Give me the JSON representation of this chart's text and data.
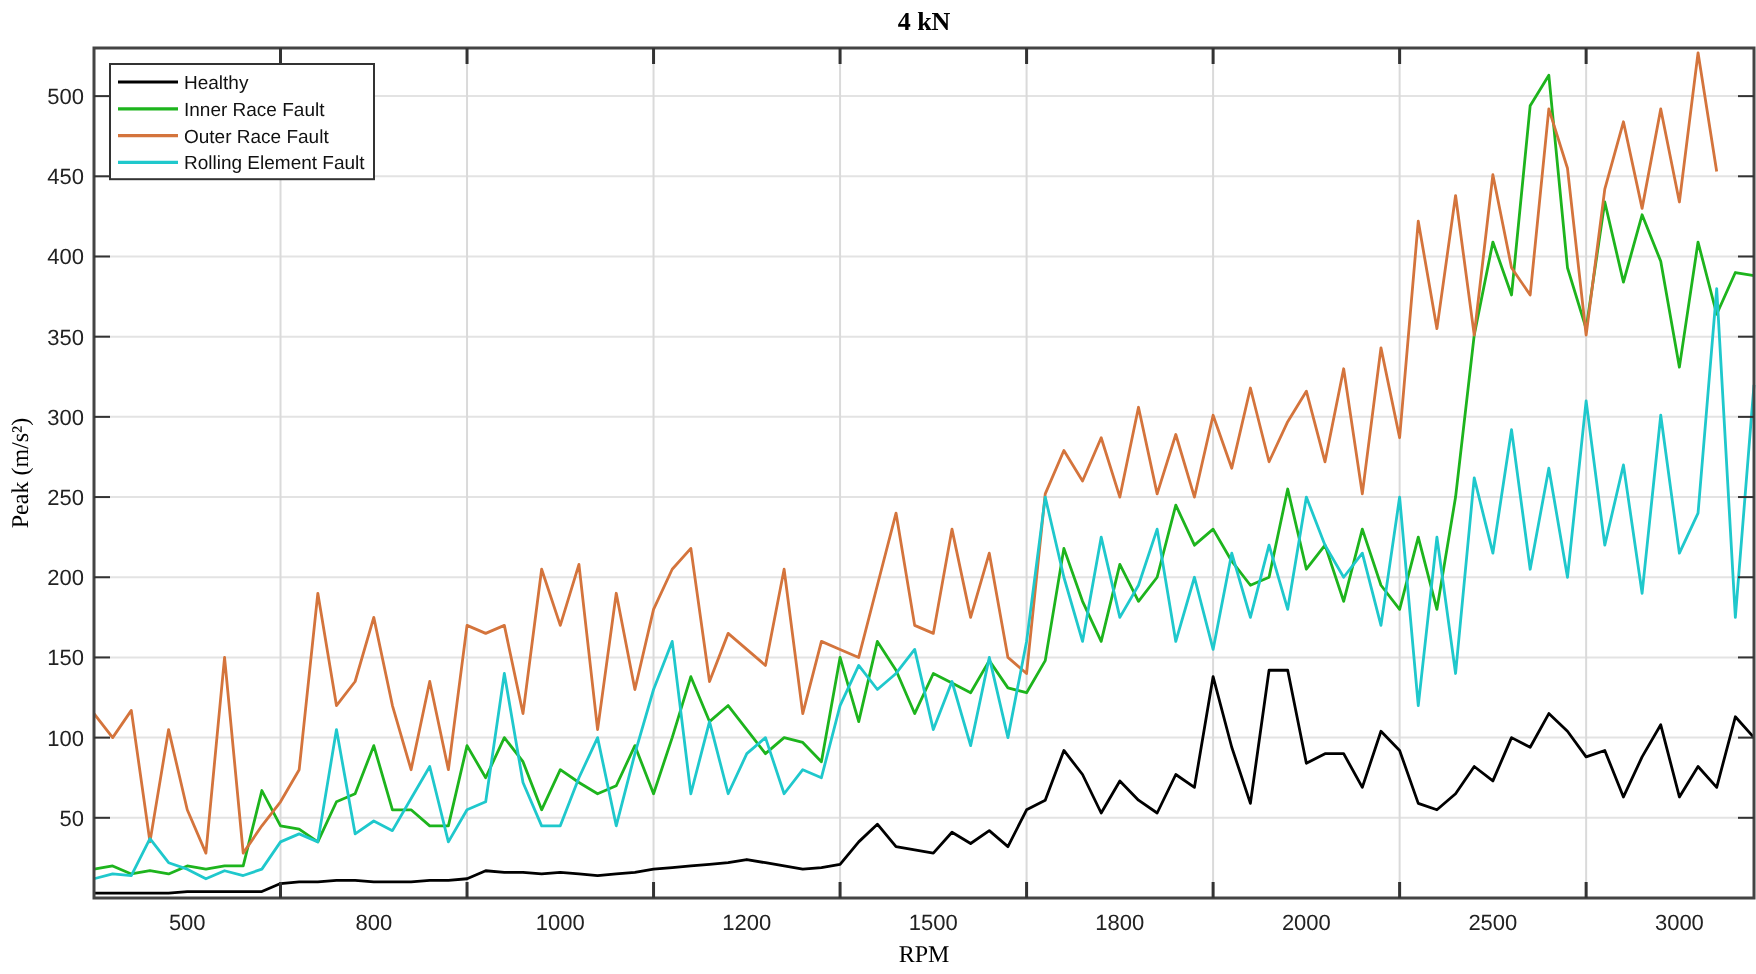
{
  "chart_data": {
    "type": "line",
    "title": "4 kN",
    "xlabel": "RPM",
    "ylabel": "Peak (m/s²)",
    "ylim": [
      0,
      530
    ],
    "categories": [
      null,
      null,
      null,
      null,
      null,
      "500",
      null,
      null,
      null,
      null,
      null,
      null,
      null,
      null,
      null,
      "800",
      null,
      null,
      null,
      null,
      null,
      null,
      null,
      null,
      null,
      "1000",
      null,
      null,
      null,
      null,
      null,
      null,
      null,
      null,
      null,
      "1200",
      null,
      null,
      null,
      null,
      null,
      null,
      null,
      null,
      null,
      "1500",
      null,
      null,
      null,
      null,
      null,
      null,
      null,
      null,
      null,
      "1800",
      null,
      null,
      null,
      null,
      null,
      null,
      null,
      null,
      null,
      "2000",
      null,
      null,
      null,
      null,
      null,
      null,
      null,
      null,
      null,
      "2500",
      null,
      null,
      null,
      null,
      null,
      null,
      null,
      null,
      null,
      "3000",
      null,
      null,
      null,
      null
    ],
    "yticks": [
      50,
      100,
      150,
      200,
      250,
      300,
      350,
      400,
      450,
      500
    ],
    "grid": true,
    "legend": "top left",
    "line_style": "solid",
    "series": [
      {
        "name": "Healthy",
        "color": "#000000",
        "values": [
          3,
          3,
          3,
          3,
          3,
          4,
          4,
          4,
          4,
          4,
          9,
          10,
          10,
          11,
          11,
          10,
          10,
          10,
          11,
          11,
          12,
          17,
          16,
          16,
          15,
          16,
          15,
          14,
          15,
          16,
          18,
          19,
          20,
          21,
          22,
          24,
          22,
          20,
          18,
          19,
          21,
          35,
          46,
          32,
          30,
          28,
          41,
          34,
          42,
          32,
          55,
          61,
          92,
          77,
          53,
          73,
          61,
          53,
          77,
          69,
          138,
          94,
          59,
          142,
          142,
          84,
          90,
          90,
          69,
          104,
          92,
          59,
          55,
          65,
          82,
          73,
          100,
          94,
          115,
          104,
          88,
          92,
          63,
          88,
          108,
          63,
          82,
          69,
          113,
          100
        ]
      },
      {
        "name": "Inner Race Fault",
        "color": "#1db41d",
        "values": [
          18,
          20,
          15,
          17,
          15,
          20,
          18,
          20,
          20,
          67,
          45,
          43,
          35,
          60,
          65,
          95,
          55,
          55,
          45,
          45,
          95,
          75,
          100,
          85,
          55,
          80,
          72,
          65,
          70,
          95,
          65,
          100,
          138,
          110,
          120,
          105,
          90,
          100,
          97,
          85,
          150,
          110,
          160,
          142,
          115,
          140,
          134,
          128,
          148,
          131,
          128,
          148,
          218,
          185,
          160,
          208,
          185,
          200,
          245,
          220,
          230,
          210,
          195,
          200,
          255,
          205,
          220,
          185,
          230,
          195,
          180,
          225,
          180,
          250,
          351,
          409,
          376,
          494,
          513,
          393,
          355,
          434,
          384,
          426,
          397,
          331,
          409,
          364,
          390,
          388
        ]
      },
      {
        "name": "Outer Race Fault",
        "color": "#d4743c",
        "values": [
          115,
          100,
          117,
          35,
          105,
          55,
          28,
          150,
          28,
          45,
          60,
          80,
          190,
          120,
          135,
          175,
          120,
          80,
          135,
          80,
          170,
          165,
          170,
          115,
          205,
          170,
          208,
          105,
          190,
          130,
          180,
          205,
          218,
          135,
          165,
          155,
          145,
          205,
          115,
          160,
          155,
          150,
          195,
          240,
          170,
          165,
          230,
          175,
          215,
          150,
          140,
          252,
          279,
          260,
          287,
          250,
          306,
          252,
          289,
          250,
          301,
          268,
          318,
          272,
          297,
          316,
          272,
          330,
          252,
          343,
          287,
          422,
          355,
          438,
          351,
          451,
          393,
          376,
          492,
          455,
          351,
          442,
          484,
          430,
          492,
          434,
          527,
          453,
          null,
          null
        ]
      },
      {
        "name": "Rolling Element Fault",
        "color": "#1fc8cc",
        "values": [
          12,
          15,
          14,
          37,
          22,
          18,
          12,
          17,
          14,
          18,
          35,
          40,
          35,
          105,
          40,
          48,
          42,
          62,
          82,
          35,
          55,
          60,
          140,
          72,
          45,
          45,
          75,
          100,
          45,
          90,
          130,
          160,
          65,
          110,
          65,
          90,
          100,
          65,
          80,
          75,
          120,
          145,
          130,
          140,
          155,
          105,
          135,
          95,
          150,
          100,
          160,
          250,
          200,
          160,
          225,
          175,
          195,
          230,
          160,
          200,
          155,
          215,
          175,
          220,
          180,
          250,
          220,
          200,
          215,
          170,
          250,
          120,
          225,
          140,
          262,
          215,
          292,
          205,
          268,
          200,
          310,
          220,
          270,
          190,
          301,
          215,
          240,
          380,
          175,
          320
        ]
      }
    ]
  }
}
